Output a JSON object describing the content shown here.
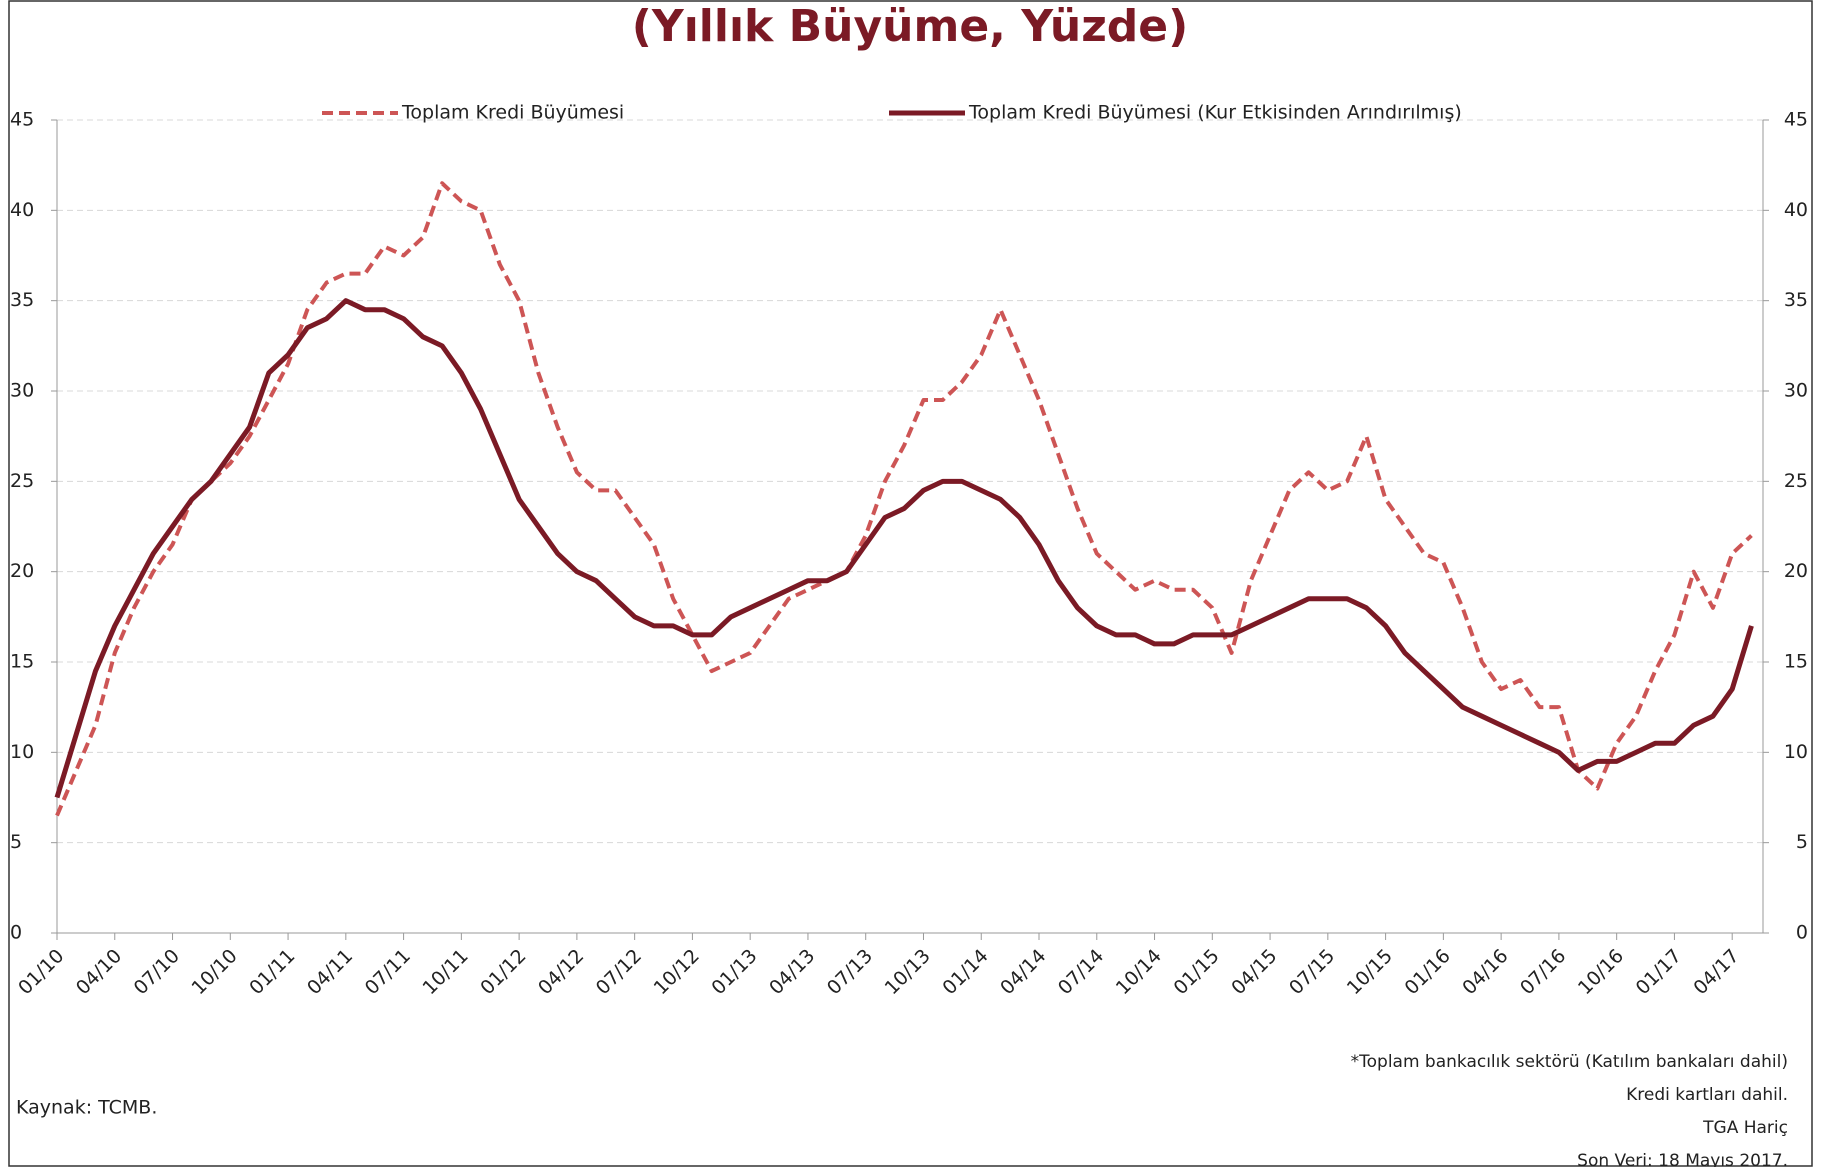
{
  "chart_data": {
    "type": "line",
    "title": "(Yıllık Büyüme, Yüzde)",
    "categories": [
      "01/10",
      null,
      null,
      "04/10",
      null,
      null,
      "07/10",
      null,
      null,
      "10/10",
      null,
      null,
      "01/11",
      null,
      null,
      "04/11",
      null,
      null,
      "07/11",
      null,
      null,
      "10/11",
      null,
      null,
      "01/12",
      null,
      null,
      "04/12",
      null,
      null,
      "07/12",
      null,
      null,
      "10/12",
      null,
      null,
      "01/13",
      null,
      null,
      "04/13",
      null,
      null,
      "07/13",
      null,
      null,
      "10/13",
      null,
      null,
      "01/14",
      null,
      null,
      "04/14",
      null,
      null,
      "07/14",
      null,
      null,
      "10/14",
      null,
      null,
      "01/15",
      null,
      null,
      "04/15",
      null,
      null,
      "07/15",
      null,
      null,
      "10/15",
      null,
      null,
      "01/16",
      null,
      null,
      "04/16",
      null,
      null,
      "07/16",
      null,
      null,
      "10/16",
      null,
      null,
      "01/17",
      null,
      null,
      "04/17",
      null
    ],
    "series": [
      {
        "name": "Toplam Kredi Büyümesi",
        "color": "#cd5555",
        "dashed": true,
        "values": [
          6.5,
          9,
          11.5,
          15.5,
          18,
          20,
          21.5,
          24,
          25,
          26,
          27.5,
          29.5,
          31.5,
          34.5,
          36,
          36.5,
          36.5,
          38,
          37.5,
          38.5,
          41.5,
          40.5,
          40,
          37,
          35,
          31,
          28,
          25.5,
          24.5,
          24.5,
          23,
          21.5,
          18.5,
          16.5,
          14.5,
          15,
          15.5,
          17,
          18.5,
          19,
          19.5,
          20,
          22,
          25,
          27,
          29.5,
          29.5,
          30.5,
          32,
          34.5,
          32,
          29.5,
          26.5,
          23.5,
          21,
          20,
          19,
          19.5,
          19,
          19,
          18,
          15.5,
          19.5,
          22,
          24.5,
          25.5,
          24.5,
          25,
          27.5,
          24,
          22.5,
          21,
          20.5,
          18,
          15,
          13.5,
          14,
          12.5,
          12.5,
          9,
          8,
          10.5,
          12,
          14.5,
          16.5,
          20,
          18,
          21,
          22
        ]
      },
      {
        "name": "Toplam Kredi Büyümesi (Kur Etkisinden Arındırılmış)",
        "color": "#7b1a25",
        "dashed": false,
        "values": [
          7.5,
          11,
          14.5,
          17,
          19,
          21,
          22.5,
          24,
          25,
          26.5,
          28,
          31,
          32,
          33.5,
          34,
          35,
          34.5,
          34.5,
          34,
          33,
          32.5,
          31,
          29,
          26.5,
          24,
          22.5,
          21,
          20,
          19.5,
          18.5,
          17.5,
          17,
          17,
          16.5,
          16.5,
          17.5,
          18,
          18.5,
          19,
          19.5,
          19.5,
          20,
          21.5,
          23,
          23.5,
          24.5,
          25,
          25,
          24.5,
          24,
          23,
          21.5,
          19.5,
          18,
          17,
          16.5,
          16.5,
          16,
          16,
          16.5,
          16.5,
          16.5,
          17,
          17.5,
          18,
          18.5,
          18.5,
          18.5,
          18,
          17,
          15.5,
          14.5,
          13.5,
          12.5,
          12,
          11.5,
          11,
          10.5,
          10,
          9,
          9.5,
          9.5,
          10,
          10.5,
          10.5,
          11.5,
          12,
          13.5,
          17
        ]
      }
    ],
    "ylim": [
      0,
      45
    ],
    "yticks": [
      0,
      5,
      10,
      15,
      20,
      25,
      30,
      35,
      40,
      45
    ],
    "grid": true,
    "notes": [
      "*Toplam bankacılık sektörü (Katılım bankaları dahil)",
      "Kredi kartları dahil.",
      "TGA Hariç",
      "Son Veri: 18 Mayıs 2017."
    ],
    "source": "Kaynak: TCMB."
  }
}
